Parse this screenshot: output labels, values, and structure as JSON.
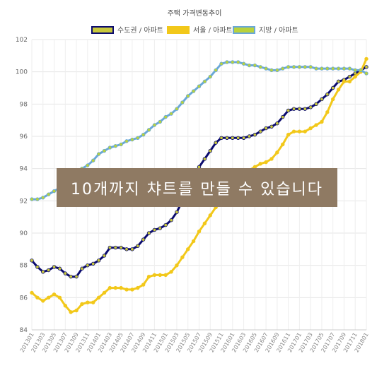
{
  "chart_data": {
    "type": "line",
    "title": "주택 가격변동추이",
    "ylim": [
      84,
      102
    ],
    "yticks": [
      84,
      86,
      88,
      90,
      92,
      94,
      96,
      98,
      100,
      102
    ],
    "x": [
      "201301",
      "201302",
      "201303",
      "201304",
      "201305",
      "201306",
      "201307",
      "201308",
      "201309",
      "201310",
      "201311",
      "201312",
      "201401",
      "201402",
      "201403",
      "201404",
      "201405",
      "201406",
      "201407",
      "201408",
      "201409",
      "201410",
      "201411",
      "201412",
      "201501",
      "201502",
      "201503",
      "201504",
      "201505",
      "201506",
      "201507",
      "201508",
      "201509",
      "201510",
      "201511",
      "201512",
      "201601",
      "201602",
      "201603",
      "201604",
      "201605",
      "201606",
      "201607",
      "201608",
      "201609",
      "201610",
      "201611",
      "201612",
      "201701",
      "201702",
      "201703",
      "201704",
      "201705",
      "201706",
      "201707",
      "201708",
      "201709",
      "201710",
      "201711",
      "201712",
      "201801"
    ],
    "xtick_labels": [
      "201301",
      "201303",
      "201305",
      "201307",
      "201309",
      "201311",
      "201401",
      "201403",
      "201405",
      "201407",
      "201409",
      "201411",
      "201501",
      "201503",
      "201505",
      "201507",
      "201509",
      "201511",
      "201601",
      "201603",
      "201605",
      "201607",
      "201609",
      "201611",
      "201701",
      "201703",
      "201705",
      "201707",
      "201709",
      "201711",
      "201801"
    ],
    "grid": true,
    "legend_position": "top",
    "series": [
      {
        "name": "수도권 / 아파트",
        "color": "#0b0b6e",
        "marker": "#c8c83c",
        "values": [
          88.3,
          87.9,
          87.6,
          87.7,
          87.9,
          87.8,
          87.5,
          87.3,
          87.3,
          87.8,
          88.0,
          88.1,
          88.3,
          88.6,
          89.1,
          89.1,
          89.1,
          89.0,
          89.0,
          89.2,
          89.6,
          90.0,
          90.2,
          90.3,
          90.5,
          90.8,
          91.3,
          92.0,
          92.8,
          93.5,
          94.1,
          94.6,
          95.1,
          95.6,
          95.9,
          95.9,
          95.9,
          95.9,
          95.9,
          96.0,
          96.1,
          96.3,
          96.5,
          96.6,
          96.8,
          97.2,
          97.6,
          97.7,
          97.7,
          97.7,
          97.8,
          98.0,
          98.3,
          98.6,
          99.0,
          99.4,
          99.5,
          99.7,
          99.9,
          100.1,
          100.3
        ]
      },
      {
        "name": "서울 / 아파트",
        "color": "#f2c81a",
        "marker": "#f2c81a",
        "values": [
          86.3,
          86.0,
          85.8,
          86.0,
          86.2,
          86.0,
          85.5,
          85.1,
          85.2,
          85.6,
          85.7,
          85.7,
          86.0,
          86.3,
          86.6,
          86.6,
          86.6,
          86.5,
          86.5,
          86.6,
          86.8,
          87.3,
          87.4,
          87.4,
          87.4,
          87.6,
          88.0,
          88.5,
          89.0,
          89.5,
          90.1,
          90.6,
          91.1,
          91.6,
          92.0,
          92.5,
          93.0,
          93.4,
          93.7,
          93.9,
          94.1,
          94.3,
          94.4,
          94.6,
          95.0,
          95.5,
          96.1,
          96.3,
          96.3,
          96.3,
          96.5,
          96.7,
          96.9,
          97.5,
          98.3,
          98.9,
          99.4,
          99.4,
          99.7,
          100.0,
          100.8
        ]
      },
      {
        "name": "지방 / 아파트",
        "color": "#6aa8d8",
        "marker": "#b9d23c",
        "values": [
          92.1,
          92.1,
          92.2,
          92.4,
          92.6,
          92.8,
          93.1,
          93.3,
          93.6,
          94.0,
          94.2,
          94.5,
          94.9,
          95.1,
          95.3,
          95.4,
          95.5,
          95.7,
          95.8,
          95.9,
          96.1,
          96.4,
          96.7,
          96.9,
          97.2,
          97.4,
          97.7,
          98.1,
          98.5,
          98.8,
          99.1,
          99.4,
          99.7,
          100.1,
          100.5,
          100.6,
          100.6,
          100.6,
          100.5,
          100.4,
          100.4,
          100.3,
          100.2,
          100.1,
          100.1,
          100.2,
          100.3,
          100.3,
          100.3,
          100.3,
          100.3,
          100.2,
          100.2,
          100.2,
          100.2,
          100.2,
          100.2,
          100.2,
          100.1,
          100.1,
          99.9
        ]
      }
    ]
  },
  "overlay": {
    "text": "10개까지 챠트를 만들 수 있습니다"
  }
}
